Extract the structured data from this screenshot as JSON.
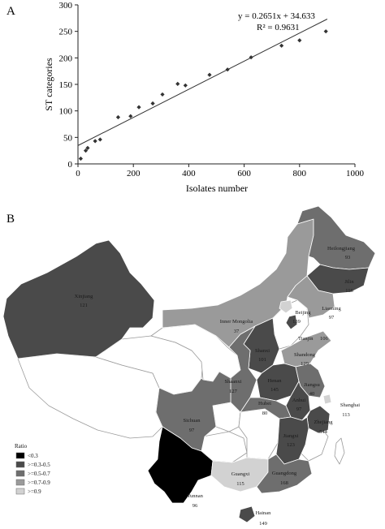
{
  "panel_a": {
    "letter": "A"
  },
  "panel_b": {
    "letter": "B"
  },
  "chart_data": [
    {
      "type": "scatter",
      "title": "",
      "xlabel": "Isolates number",
      "ylabel": "ST categories",
      "xlim": [
        0,
        1000
      ],
      "ylim": [
        0,
        300
      ],
      "x_ticks": [
        "0",
        "200",
        "400",
        "600",
        "800",
        "1000"
      ],
      "y_ticks": [
        "0",
        "50",
        "100",
        "150",
        "200",
        "250",
        "300"
      ],
      "grid": false,
      "points": [
        {
          "x": 10,
          "y": 10
        },
        {
          "x": 28,
          "y": 25
        },
        {
          "x": 35,
          "y": 30
        },
        {
          "x": 62,
          "y": 43
        },
        {
          "x": 80,
          "y": 46
        },
        {
          "x": 145,
          "y": 88
        },
        {
          "x": 190,
          "y": 90
        },
        {
          "x": 220,
          "y": 107
        },
        {
          "x": 270,
          "y": 114
        },
        {
          "x": 305,
          "y": 131
        },
        {
          "x": 360,
          "y": 151
        },
        {
          "x": 388,
          "y": 148
        },
        {
          "x": 475,
          "y": 168
        },
        {
          "x": 540,
          "y": 178
        },
        {
          "x": 625,
          "y": 201
        },
        {
          "x": 735,
          "y": 223
        },
        {
          "x": 800,
          "y": 233
        },
        {
          "x": 895,
          "y": 250
        }
      ],
      "trendline": {
        "slope": 0.2651,
        "intercept": 34.633,
        "x_range": [
          0,
          900
        ]
      },
      "annotations": [
        "y = 0.2651x + 34.633",
        "R² = 0.9631"
      ]
    },
    {
      "type": "choropleth",
      "legend": {
        "title": "Ratio",
        "items": [
          {
            "label": "<0.3",
            "color": "#000000"
          },
          {
            "label": ">=0.3-0.5",
            "color": "#4a4a4a"
          },
          {
            "label": ">=0.5-0.7",
            "color": "#6e6e6e"
          },
          {
            "label": ">=0.7-0.9",
            "color": "#9a9a9a"
          },
          {
            "label": ">=0.9",
            "color": "#d2d2d2"
          }
        ]
      },
      "regions": [
        {
          "name": "Xinjiang",
          "value": "121",
          "color": "#4a4a4a"
        },
        {
          "name": "Heilongjiang",
          "value": "93",
          "color": "#6e6e6e"
        },
        {
          "name": "Jilin",
          "value": "116",
          "color": "#4a4a4a"
        },
        {
          "name": "Liaoning",
          "value": "97",
          "color": "#9a9a9a"
        },
        {
          "name": "Inner Mongolia",
          "value": "37",
          "color": "#9a9a9a"
        },
        {
          "name": "Beijing",
          "value": "139",
          "color": "#d2d2d2"
        },
        {
          "name": "Tianjin",
          "value": "106",
          "color": "#4a4a4a"
        },
        {
          "name": "Shanxi",
          "value": "101",
          "color": "#4a4a4a"
        },
        {
          "name": "Shandong",
          "value": "129",
          "color": "#9a9a9a"
        },
        {
          "name": "Henan",
          "value": "145",
          "color": "#4a4a4a"
        },
        {
          "name": "Jiangsu",
          "value": "40",
          "color": "#6e6e6e"
        },
        {
          "name": "Shaanxi",
          "value": "127",
          "color": "#6e6e6e"
        },
        {
          "name": "Anhui",
          "value": "97",
          "color": "#4a4a4a"
        },
        {
          "name": "Shanghai",
          "value": "113",
          "color": "#d2d2d2"
        },
        {
          "name": "Hubei",
          "value": "80",
          "color": "#6e6e6e"
        },
        {
          "name": "Zhejiang",
          "value": "544",
          "color": "#4a4a4a"
        },
        {
          "name": "Sichuan",
          "value": "97",
          "color": "#6e6e6e"
        },
        {
          "name": "Jiangxi",
          "value": "123",
          "color": "#4a4a4a"
        },
        {
          "name": "Guangxi",
          "value": "115",
          "color": "#d2d2d2"
        },
        {
          "name": "Guangdong",
          "value": "168",
          "color": "#6e6e6e"
        },
        {
          "name": "Yunnan",
          "value": "96",
          "color": "#000000"
        },
        {
          "name": "Hainan",
          "value": "149",
          "color": "#4a4a4a"
        }
      ]
    }
  ]
}
